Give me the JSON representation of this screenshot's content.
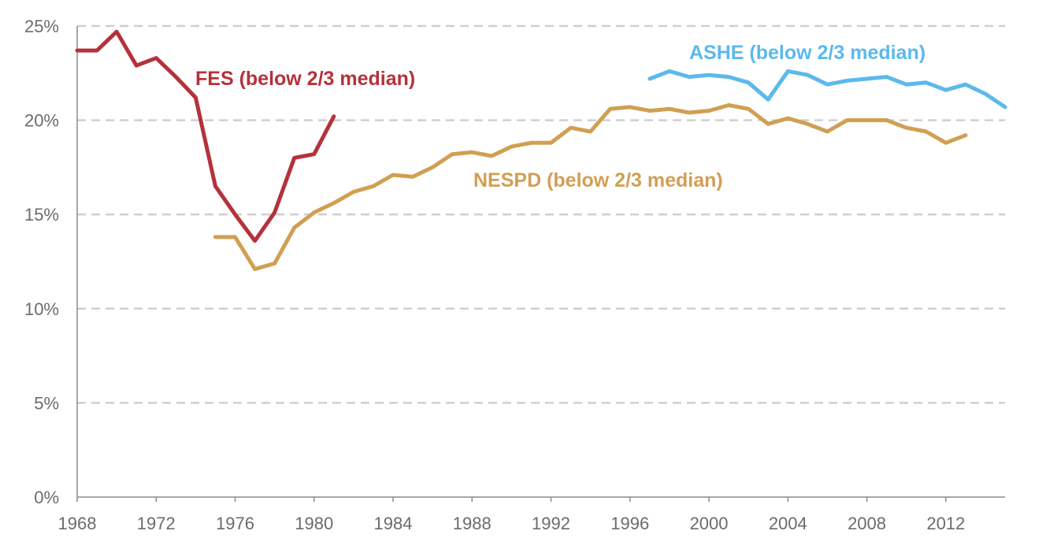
{
  "chart_data": {
    "type": "line",
    "x_ticks": [
      "1968",
      "1972",
      "1976",
      "1980",
      "1984",
      "1988",
      "1992",
      "1996",
      "2000",
      "2004",
      "2008",
      "2012"
    ],
    "y_ticks": [
      "0%",
      "5%",
      "10%",
      "15%",
      "20%",
      "25%"
    ],
    "xlim": [
      1968,
      2015
    ],
    "ylim": [
      0,
      25
    ],
    "grid": true,
    "series": [
      {
        "name": "FES (below 2/3 median)",
        "color": "#b5323b",
        "x": [
          1968,
          1969,
          1970,
          1971,
          1972,
          1973,
          1974,
          1975,
          1976,
          1977,
          1978,
          1979,
          1980,
          1981
        ],
        "y": [
          23.7,
          23.7,
          24.7,
          22.9,
          23.3,
          22.3,
          21.2,
          16.5,
          15.0,
          13.6,
          15.1,
          18.0,
          18.2,
          20.2
        ]
      },
      {
        "name": "NESPD (below 2/3 median)",
        "color": "#d19f53",
        "x": [
          1975,
          1976,
          1977,
          1978,
          1979,
          1980,
          1981,
          1982,
          1983,
          1984,
          1985,
          1986,
          1987,
          1988,
          1989,
          1990,
          1991,
          1992,
          1993,
          1994,
          1995,
          1996,
          1997,
          1998,
          1999,
          2000,
          2001,
          2002,
          2003,
          2004,
          2005,
          2006,
          2007,
          2008,
          2009,
          2010,
          2011,
          2012,
          2013
        ],
        "y": [
          13.8,
          13.8,
          12.1,
          12.4,
          14.3,
          15.1,
          15.6,
          16.2,
          16.5,
          17.1,
          17.0,
          17.5,
          18.2,
          18.3,
          18.1,
          18.6,
          18.8,
          18.8,
          19.6,
          19.4,
          20.6,
          20.7,
          20.5,
          20.6,
          20.4,
          20.5,
          20.8,
          20.6,
          19.8,
          20.1,
          19.8,
          19.4,
          20.0,
          20.0,
          20.0,
          19.6,
          19.4,
          18.8,
          19.2
        ]
      },
      {
        "name": "ASHE (below 2/3 median)",
        "color": "#5bb9ec",
        "x": [
          1997,
          1998,
          1999,
          2000,
          2001,
          2002,
          2003,
          2004,
          2005,
          2006,
          2007,
          2008,
          2009,
          2010,
          2011,
          2012,
          2013,
          2014,
          2015
        ],
        "y": [
          22.2,
          22.6,
          22.3,
          22.4,
          22.3,
          22.0,
          21.1,
          22.6,
          22.4,
          21.9,
          22.1,
          22.2,
          22.3,
          21.9,
          22.0,
          21.6,
          21.9,
          21.4,
          20.7
        ]
      }
    ]
  }
}
